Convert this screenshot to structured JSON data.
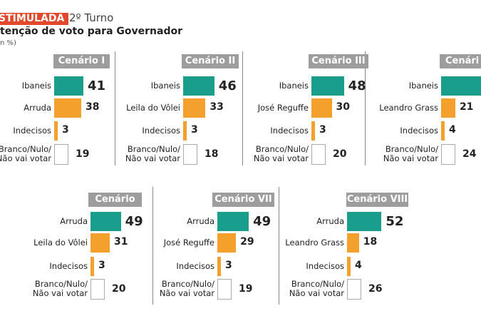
{
  "header": {
    "badge": "STIMULADA",
    "round": "2º Turno",
    "title": "tenção de voto para Governador",
    "unit": "n %)"
  },
  "colors": {
    "leader": "#1a9e8c",
    "second": "#f4a02c",
    "header": "#9d9d9d",
    "badge": "#e2492a"
  },
  "chart_data": [
    {
      "type": "bar",
      "title": "Cenário I",
      "categories": [
        "Ibaneis",
        "Arruda",
        "Indecisos",
        "Branco/Nulo/\nNão vai votar"
      ],
      "values": [
        41,
        38,
        3,
        19
      ]
    },
    {
      "type": "bar",
      "title": "Cenário II",
      "categories": [
        "Ibaneis",
        "Leila do Vôlei",
        "Indecisos",
        "Branco/Nulo/\nNão vai votar"
      ],
      "values": [
        46,
        33,
        3,
        18
      ]
    },
    {
      "type": "bar",
      "title": "Cenário III",
      "categories": [
        "Ibaneis",
        "José Reguffe",
        "Indecisos",
        "Branco/Nulo/\nNão vai votar"
      ],
      "values": [
        48,
        30,
        3,
        20
      ]
    },
    {
      "type": "bar",
      "title": "Cenári",
      "categories": [
        "Ibaneis",
        "Leandro Grass",
        "Indecisos",
        "Branco/Nulo/\nNão vai votar"
      ],
      "values": [
        null,
        21,
        4,
        24
      ]
    },
    {
      "type": "bar",
      "title": "Cenário VI",
      "categories": [
        "Arruda",
        "Leila do Vôlei",
        "Indecisos",
        "Branco/Nulo/\nNão vai votar"
      ],
      "values": [
        49,
        31,
        3,
        20
      ]
    },
    {
      "type": "bar",
      "title": "Cenário VII",
      "categories": [
        "Arruda",
        "José Reguffe",
        "Indecisos",
        "Branco/Nulo/\nNão vai votar"
      ],
      "values": [
        49,
        29,
        3,
        19
      ]
    },
    {
      "type": "bar",
      "title": "Cenário VIII",
      "categories": [
        "Arruda",
        "Leandro Grass",
        "Indecisos",
        "Branco/Nulo/\nNão vai votar"
      ],
      "values": [
        52,
        18,
        4,
        26
      ]
    }
  ]
}
